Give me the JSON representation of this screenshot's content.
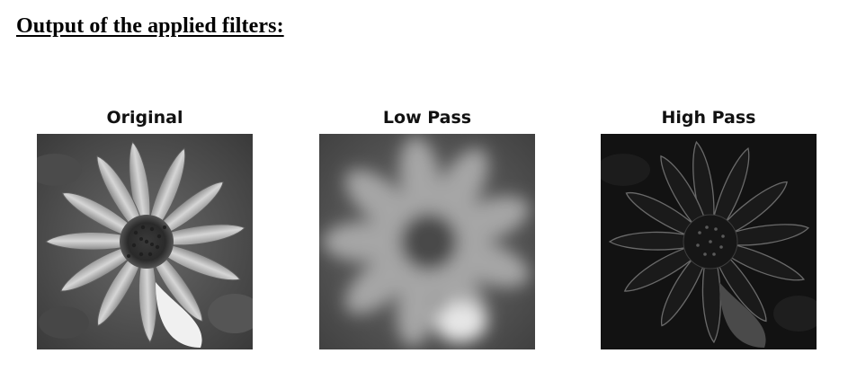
{
  "heading": "Output of the applied filters:",
  "panels": [
    {
      "title": "Original"
    },
    {
      "title": "Low Pass"
    },
    {
      "title": "High Pass"
    }
  ]
}
